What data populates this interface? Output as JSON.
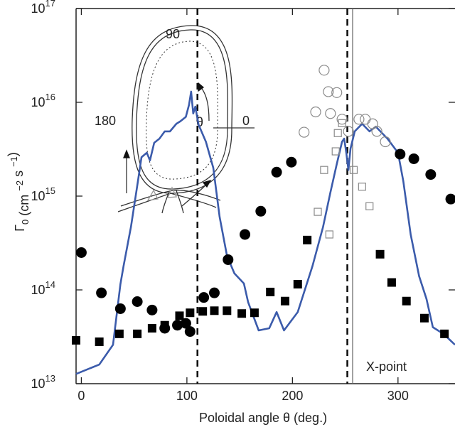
{
  "chart_data": {
    "type": "scatter",
    "xlabel": "Poloidal angle   θ (deg.)",
    "ylabel_parts": [
      {
        "text": "Γ"
      },
      {
        "text": "0",
        "shift": "sub"
      },
      {
        "text": " (cm "
      },
      {
        "text": "−2",
        "shift": "sup"
      },
      {
        "text": " s "
      },
      {
        "text": "−1",
        "shift": "sup"
      },
      {
        "text": ")"
      }
    ],
    "xlim": [
      -5,
      354
    ],
    "ylim": [
      10000000000000.0,
      1e+17
    ],
    "log_y": true,
    "xticks": [
      0,
      100,
      200,
      300
    ],
    "yticks": [
      {
        "value": 10000000000000.0,
        "label": "10",
        "sup": "13"
      },
      {
        "value": 100000000000000.0,
        "label": "10",
        "sup": "14"
      },
      {
        "value": 1000000000000000.0,
        "label": "10",
        "sup": "15"
      },
      {
        "value": 1e+16,
        "label": "10",
        "sup": "16"
      },
      {
        "value": 1e+17,
        "label": "10",
        "sup": "17"
      }
    ],
    "vlines": [
      {
        "x": 110,
        "style": "dashed"
      },
      {
        "x": 252,
        "style": "dashed"
      },
      {
        "x": 257,
        "style": "solid"
      }
    ],
    "xpoint_label": "X-point",
    "inset_labels": [
      "90",
      "180",
      "0",
      "θ"
    ],
    "series": [
      {
        "marker": "line",
        "color": "#3b5bab",
        "x": [
          -5,
          17,
          30,
          37,
          40,
          47,
          53,
          57,
          62,
          65,
          69,
          74,
          79,
          84,
          90,
          94,
          99,
          102,
          104,
          106,
          108,
          111,
          118,
          125,
          131,
          138,
          145,
          154,
          158,
          168,
          178,
          185,
          192,
          205,
          219,
          229,
          236,
          242,
          247,
          249,
          251,
          253,
          255,
          259,
          266,
          273,
          279,
          290,
          300,
          305,
          312,
          320,
          327,
          333,
          343,
          354
        ],
        "values": [
          12700000000000.0,
          16000000000000.0,
          26000000000000.0,
          115000000000000.0,
          180000000000000.0,
          470000000000000.0,
          1300000000000000.0,
          2600000000000000.0,
          2900000000000000.0,
          2400000000000000.0,
          3700000000000000.0,
          4100000000000000.0,
          4900000000000000.0,
          4900000000000000.0,
          5900000000000000.0,
          6300000000000000.0,
          7000000000000000.0,
          9400000000000000.0,
          1.3e+16,
          7600000000000000.0,
          9000000000000000.0,
          5800000000000000.0,
          3800000000000000.0,
          2000000000000000.0,
          600000000000000.0,
          230000000000000.0,
          150000000000000.0,
          117000000000000.0,
          74000000000000.0,
          37000000000000.0,
          39000000000000.0,
          58000000000000.0,
          37000000000000.0,
          58000000000000.0,
          180000000000000.0,
          470000000000000.0,
          1100000000000000.0,
          2200000000000000.0,
          3800000000000000.0,
          4100000000000000.0,
          2900000000000000.0,
          1900000000000000.0,
          3200000000000000.0,
          4900000000000000.0,
          5900000000000000.0,
          4900000000000000.0,
          5500000000000000.0,
          4100000000000000.0,
          2900000000000000.0,
          1450000000000000.0,
          390000000000000.0,
          140000000000000.0,
          80000000000000.0,
          40000000000000.0,
          34000000000000.0,
          26000000000000.0
        ]
      },
      {
        "marker": "circle",
        "color": "#000000",
        "x": [
          0,
          19,
          37,
          53,
          67,
          79,
          91,
          99,
          103,
          116,
          126,
          139,
          155,
          170,
          185,
          199,
          302,
          315,
          331,
          350
        ],
        "values": [
          250000000000000.0,
          93000000000000.0,
          63000000000000.0,
          75000000000000.0,
          61000000000000.0,
          39000000000000.0,
          42000000000000.0,
          44000000000000.0,
          36000000000000.0,
          83000000000000.0,
          93000000000000.0,
          210000000000000.0,
          390000000000000.0,
          690000000000000.0,
          1800000000000000.0,
          2300000000000000.0,
          2800000000000000.0,
          2500000000000000.0,
          1700000000000000.0,
          930000000000000.0
        ]
      },
      {
        "marker": "square",
        "color": "#000000",
        "x": [
          -5,
          17,
          36,
          53,
          67,
          79,
          93,
          103,
          115,
          126,
          138,
          152,
          164,
          179,
          193,
          205,
          214,
          283,
          294,
          308,
          325,
          344
        ],
        "values": [
          29000000000000.0,
          28000000000000.0,
          34000000000000.0,
          34000000000000.0,
          39000000000000.0,
          42000000000000.0,
          53000000000000.0,
          57000000000000.0,
          59000000000000.0,
          60000000000000.0,
          60000000000000.0,
          56000000000000.0,
          57000000000000.0,
          95000000000000.0,
          76000000000000.0,
          115000000000000.0,
          340000000000000.0,
          240000000000000.0,
          120000000000000.0,
          76000000000000.0,
          50000000000000.0,
          34000000000000.0
        ]
      },
      {
        "marker": "open-circle",
        "color": "#8a8a8a",
        "x": [
          230,
          211,
          222,
          234,
          242,
          236,
          247,
          253,
          263,
          269,
          276,
          280,
          288
        ],
        "values": [
          2.2e+16,
          4800000000000000.0,
          7900000000000000.0,
          1.3e+16,
          1.27e+16,
          7600000000000000.0,
          6600000000000000.0,
          4900000000000000.0,
          6600000000000000.0,
          6600000000000000.0,
          5900000000000000.0,
          4900000000000000.0,
          3800000000000000.0
        ]
      },
      {
        "marker": "open-square",
        "color": "#8a8a8a",
        "x": [
          224,
          230,
          235,
          241,
          243,
          247,
          258,
          266,
          273
        ],
        "values": [
          680000000000000.0,
          1900000000000000.0,
          390000000000000.0,
          3000000000000000.0,
          4700000000000000.0,
          6000000000000000.0,
          1900000000000000.0,
          1260000000000000.0,
          780000000000000.0
        ]
      }
    ]
  }
}
